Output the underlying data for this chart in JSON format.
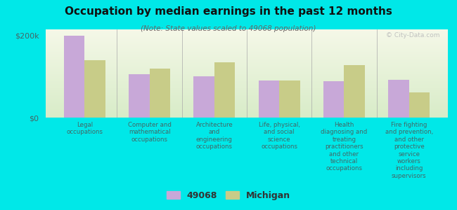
{
  "title": "Occupation by median earnings in the past 12 months",
  "subtitle": "(Note: State values scaled to 49068 population)",
  "background_color": "#00e8e8",
  "plot_bg_top": "#f5f8e8",
  "plot_bg_bottom": "#d8ecc8",
  "bar_color_49068": "#c8a8d8",
  "bar_color_michigan": "#c8cc88",
  "categories": [
    "Legal\noccupations",
    "Computer and\nmathematical\noccupations",
    "Architecture\nand\nengineering\noccupations",
    "Life, physical,\nand social\nscience\noccupations",
    "Health\ndiagnosing and\ntreating\npractitioners",
    "Fire fighting\nand prevention,\nand other\nprotective"
  ],
  "values_49068": [
    200000,
    105000,
    100000,
    90000,
    88000,
    92000
  ],
  "values_michigan": [
    140000,
    120000,
    135000,
    90000,
    128000,
    62000
  ],
  "ylim": [
    0,
    215000
  ],
  "yticks": [
    0,
    200000
  ],
  "ytick_labels": [
    "$0",
    "$200k"
  ],
  "legend_labels": [
    "49068",
    "Michigan"
  ],
  "watermark": "© City-Data.com"
}
